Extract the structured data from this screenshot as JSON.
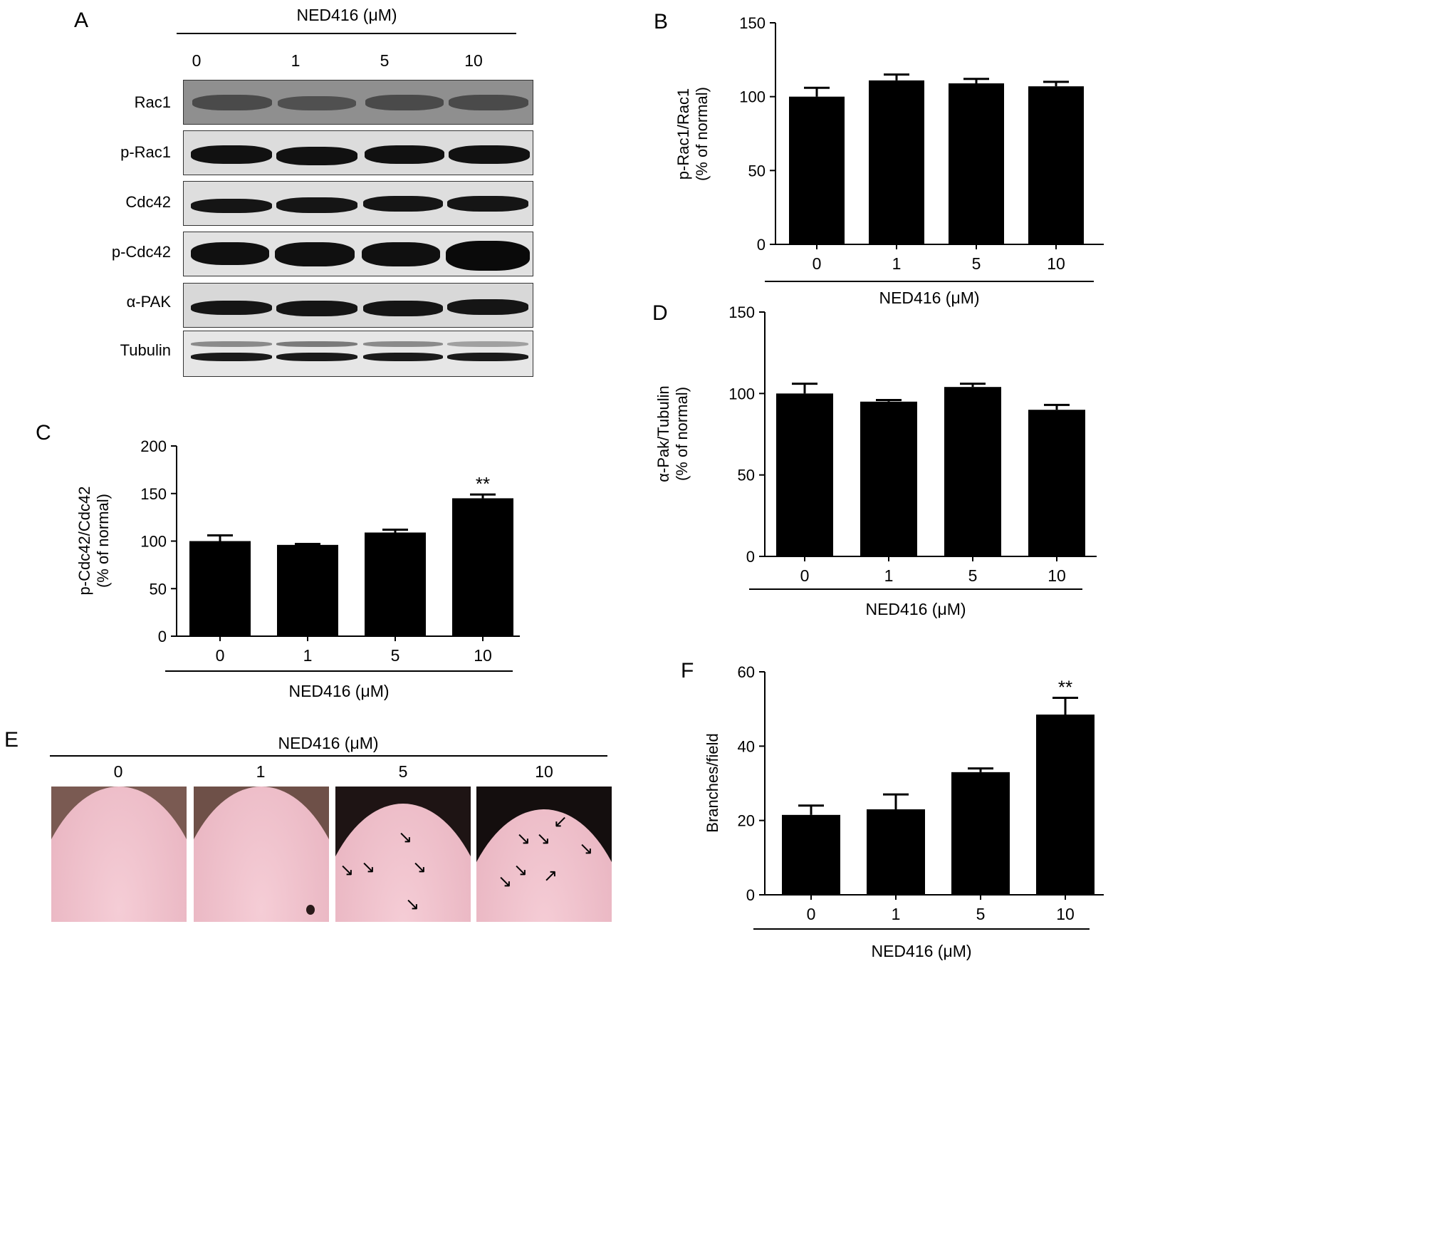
{
  "panel_a": {
    "letter": "A",
    "header": "NED416 (μM)",
    "doses": [
      "0",
      "1",
      "5",
      "10"
    ],
    "blots": [
      "Rac1",
      "p-Rac1",
      "Cdc42",
      "p-Cdc42",
      "α-PAK",
      "Tubulin"
    ]
  },
  "panel_e": {
    "letter": "E",
    "header": "NED416 (μM)",
    "doses": [
      "0",
      "1",
      "5",
      "10"
    ]
  },
  "chart_data": [
    {
      "id": "B",
      "letter": "B",
      "type": "bar",
      "categories": [
        "0",
        "1",
        "5",
        "10"
      ],
      "values": [
        100,
        111,
        109,
        107
      ],
      "errors": [
        6,
        4,
        3,
        3
      ],
      "ylabel_lines": [
        "p-Rac1/Rac1",
        "(% of normal)"
      ],
      "xlabel": "NED416 (μM)",
      "ylim": [
        0,
        150
      ],
      "yticks": [
        0,
        50,
        100,
        150
      ],
      "annotations": [
        "",
        "",
        "",
        ""
      ]
    },
    {
      "id": "C",
      "letter": "C",
      "type": "bar",
      "categories": [
        "0",
        "1",
        "5",
        "10"
      ],
      "values": [
        100,
        96,
        109,
        145
      ],
      "errors": [
        6,
        1,
        3,
        4
      ],
      "ylabel_lines": [
        "p-Cdc42/Cdc42",
        "(% of normal)"
      ],
      "xlabel": "NED416 (μM)",
      "ylim": [
        0,
        200
      ],
      "yticks": [
        0,
        50,
        100,
        150,
        200
      ],
      "annotations": [
        "",
        "",
        "",
        "**"
      ]
    },
    {
      "id": "D",
      "letter": "D",
      "type": "bar",
      "categories": [
        "0",
        "1",
        "5",
        "10"
      ],
      "values": [
        100,
        95,
        104,
        90
      ],
      "errors": [
        6,
        1,
        2,
        3
      ],
      "ylabel_lines": [
        "α-Pak/Tubulin",
        "(% of normal)"
      ],
      "xlabel": "NED416 (μM)",
      "ylim": [
        0,
        150
      ],
      "yticks": [
        0,
        50,
        100,
        150
      ],
      "annotations": [
        "",
        "",
        "",
        ""
      ]
    },
    {
      "id": "F",
      "letter": "F",
      "type": "bar",
      "categories": [
        "0",
        "1",
        "5",
        "10"
      ],
      "values": [
        21.5,
        23,
        33,
        48.5
      ],
      "errors": [
        2.5,
        4,
        1,
        4.5
      ],
      "ylabel_lines": [
        "Branches/field"
      ],
      "xlabel": "NED416 (μM)",
      "ylim": [
        0,
        60
      ],
      "yticks": [
        0,
        20,
        40,
        60
      ],
      "annotations": [
        "",
        "",
        "",
        "**"
      ]
    }
  ]
}
